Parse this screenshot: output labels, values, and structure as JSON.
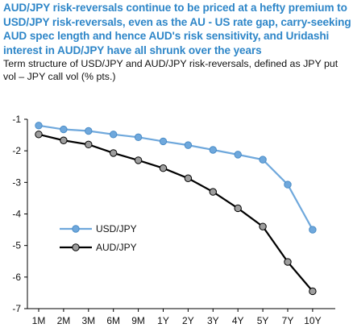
{
  "header": {
    "title": "AUD/JPY risk-reversals continue to be priced at a hefty premium to USD/JPY risk-reversals, even as the AU - US rate gap, carry-seeking AUD spec length and hence AUD's risk sensitivity, and Uridashi interest in AUD/JPY have all shrunk over the years",
    "subtitle": "Term structure of USD/JPY and AUD/JPY risk-reversals, defined as JPY put vol – JPY call vol (% pts.)"
  },
  "chart_data": {
    "type": "line",
    "title": "AUD/JPY risk-reversals continue to be priced at a hefty premium to USD/JPY risk-reversals, even as the AU - US rate gap, carry-seeking AUD spec length and hence AUD's risk sensitivity, and Uridashi interest in AUD/JPY have all shrunk over the years",
    "subtitle": "Term structure of USD/JPY and AUD/JPY risk-reversals, defined as JPY put vol – JPY call vol (% pts.)",
    "xlabel": "",
    "ylabel": "",
    "categories": [
      "1M",
      "2M",
      "3M",
      "6M",
      "9M",
      "1Y",
      "2Y",
      "3Y",
      "4Y",
      "5Y",
      "7Y",
      "10Y"
    ],
    "ylim": [
      -7,
      -1
    ],
    "yticks": [
      -7,
      -6,
      -5,
      -4,
      -3,
      -2,
      -1
    ],
    "grid": false,
    "legend_position": "lower-left",
    "series": [
      {
        "name": "USD/JPY",
        "color": "#6fa8dc",
        "marker": "circle",
        "values": [
          -1.2,
          -1.32,
          -1.37,
          -1.48,
          -1.57,
          -1.7,
          -1.82,
          -1.97,
          -2.12,
          -2.28,
          -3.07,
          -4.5
        ]
      },
      {
        "name": "AUD/JPY",
        "color": "#000000",
        "marker_fill": "#9e9e9e",
        "marker": "circle",
        "values": [
          -1.48,
          -1.67,
          -1.8,
          -2.07,
          -2.3,
          -2.55,
          -2.87,
          -3.3,
          -3.82,
          -4.4,
          -5.52,
          -6.45
        ]
      }
    ]
  }
}
